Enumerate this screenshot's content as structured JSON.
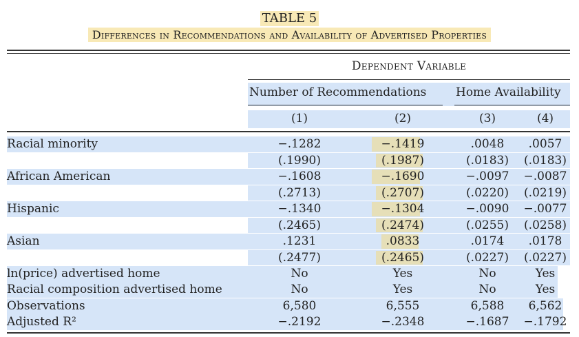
{
  "table": {
    "number": "TABLE 5",
    "title": "Differences in Recommendations and Availability of Advertised Properties",
    "dependent_variable_header": "Dependent Variable",
    "group_headers": [
      "Number of Recommendations",
      "Home Availability"
    ],
    "column_numbers": [
      "(1)",
      "(2)",
      "(3)",
      "(4)"
    ],
    "rows": [
      {
        "label": "Racial minority",
        "values": [
          "−.1282",
          "−.1419",
          ".0048",
          ".0057"
        ]
      },
      {
        "label": "",
        "values": [
          "(.1990)",
          "(.1987)",
          "(.0183)",
          "(.0183)"
        ]
      },
      {
        "label": "African American",
        "values": [
          "−.1608",
          "−.1690",
          "−.0097",
          "−.0087"
        ]
      },
      {
        "label": "",
        "values": [
          "(.2713)",
          "(.2707)",
          "(.0220)",
          "(.0219)"
        ]
      },
      {
        "label": "Hispanic",
        "values": [
          "−.1340",
          "−.1304",
          "−.0090",
          "−.0077"
        ]
      },
      {
        "label": "",
        "values": [
          "(.2465)",
          "(.2474)",
          "(.0255)",
          "(.0258)"
        ]
      },
      {
        "label": "Asian",
        "values": [
          ".1231",
          ".0833",
          ".0174",
          ".0178"
        ]
      },
      {
        "label": "",
        "values": [
          "(.2477)",
          "(.2465)",
          "(.0227)",
          "(.0227)"
        ]
      },
      {
        "label": "ln(price) advertised home",
        "values": [
          "No",
          "Yes",
          "No",
          "Yes"
        ]
      },
      {
        "label": "Racial composition advertised home",
        "values": [
          "No",
          "Yes",
          "No",
          "Yes"
        ]
      },
      {
        "label": "Observations",
        "values": [
          "6,580",
          "6,555",
          "6,588",
          "6,562"
        ]
      },
      {
        "label": "Adjusted R²",
        "values": [
          "−.2192",
          "−.2348",
          "−.1687",
          "−.1792"
        ]
      }
    ]
  },
  "colors": {
    "highlight_yellow": "#f8e9b6",
    "highlight_blue": "#d6e5f8",
    "highlight_olive": "#e6dfb8",
    "rule": "#333333"
  }
}
